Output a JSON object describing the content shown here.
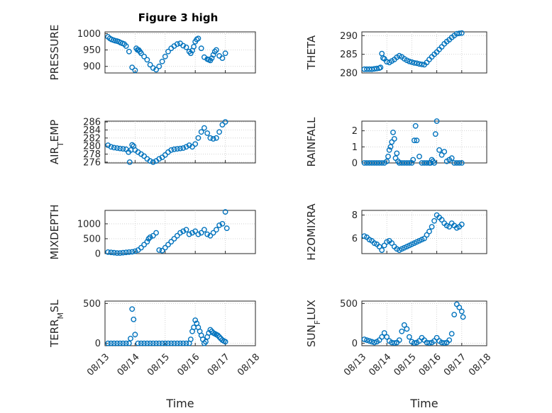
{
  "figure_title": "Figure 3 high",
  "marker_color": "#0072bd",
  "chart_data": [
    {
      "type": "scatter",
      "title": "Figure 3 high",
      "ylabel": "PRESSURE",
      "xlabel": "",
      "xlim": [
        0,
        5
      ],
      "ylim": [
        880,
        1005
      ],
      "yticks": [
        900,
        950,
        1000
      ],
      "xticks": [],
      "x": [
        0.1,
        0.16,
        0.22,
        0.28,
        0.34,
        0.4,
        0.46,
        0.52,
        0.58,
        0.64,
        0.7,
        0.8,
        0.9,
        1.0,
        1.04,
        1.08,
        1.12,
        1.16,
        1.2,
        1.3,
        1.4,
        1.5,
        1.6,
        1.7,
        1.8,
        1.9,
        2.0,
        2.1,
        2.2,
        2.3,
        2.4,
        2.5,
        2.6,
        2.7,
        2.8,
        2.85,
        2.9,
        2.95,
        3.0,
        3.05,
        3.1,
        3.2,
        3.3,
        3.4,
        3.45,
        3.5,
        3.55,
        3.6,
        3.65,
        3.7,
        3.8,
        3.9,
        4.0
      ],
      "y": [
        990,
        985,
        982,
        980,
        978,
        977,
        975,
        972,
        970,
        968,
        962,
        945,
        897,
        888,
        955,
        950,
        950,
        945,
        940,
        930,
        920,
        905,
        895,
        890,
        900,
        915,
        930,
        945,
        955,
        962,
        968,
        970,
        963,
        958,
        945,
        940,
        948,
        960,
        975,
        982,
        985,
        955,
        928,
        922,
        920,
        918,
        925,
        935,
        945,
        950,
        932,
        925,
        940
      ]
    },
    {
      "type": "scatter",
      "ylabel": "THETA",
      "xlabel": "",
      "xlim": [
        0,
        5
      ],
      "ylim": [
        280,
        291
      ],
      "yticks": [
        280,
        285,
        290
      ],
      "xticks": [],
      "x": [
        0.1,
        0.2,
        0.3,
        0.4,
        0.5,
        0.6,
        0.7,
        0.75,
        0.8,
        0.85,
        0.9,
        1.0,
        1.1,
        1.2,
        1.3,
        1.4,
        1.5,
        1.6,
        1.7,
        1.8,
        1.9,
        2.0,
        2.1,
        2.2,
        2.3,
        2.4,
        2.5,
        2.6,
        2.7,
        2.8,
        2.9,
        3.0,
        3.1,
        3.2,
        3.3,
        3.4,
        3.5,
        3.6,
        3.7,
        3.8,
        3.9,
        4.0
      ],
      "y": [
        281.0,
        281.0,
        281.0,
        281.0,
        281.1,
        281.2,
        281.3,
        281.5,
        285.2,
        284.0,
        283.8,
        283.0,
        282.8,
        283.2,
        283.6,
        284.2,
        284.6,
        284.3,
        283.8,
        283.4,
        283.1,
        282.9,
        282.7,
        282.6,
        282.4,
        282.3,
        282.2,
        282.8,
        283.6,
        284.3,
        285.0,
        285.6,
        286.3,
        287.0,
        287.8,
        288.4,
        288.9,
        289.5,
        290.0,
        290.5,
        290.6,
        290.7
      ]
    },
    {
      "type": "scatter",
      "ylabel": "AIR_TEMP",
      "xlabel": "",
      "xlim": [
        0,
        5
      ],
      "ylim": [
        275.8,
        286.2
      ],
      "yticks": [
        276,
        278,
        280,
        282,
        284,
        286
      ],
      "xticks": [],
      "x": [
        0.1,
        0.2,
        0.3,
        0.4,
        0.5,
        0.6,
        0.7,
        0.78,
        0.82,
        0.86,
        0.9,
        0.95,
        1.0,
        1.1,
        1.2,
        1.3,
        1.4,
        1.5,
        1.6,
        1.7,
        1.8,
        1.9,
        2.0,
        2.1,
        2.2,
        2.3,
        2.4,
        2.5,
        2.6,
        2.7,
        2.8,
        2.9,
        3.0,
        3.1,
        3.2,
        3.3,
        3.4,
        3.5,
        3.6,
        3.7,
        3.8,
        3.9,
        4.0
      ],
      "y": [
        280.2,
        279.8,
        279.6,
        279.5,
        279.4,
        279.3,
        279.2,
        278.5,
        276.0,
        279.0,
        280.3,
        280.0,
        279.0,
        278.5,
        278.0,
        277.5,
        276.8,
        276.3,
        276.0,
        276.3,
        276.8,
        277.2,
        277.8,
        278.5,
        279.0,
        279.2,
        279.3,
        279.4,
        279.5,
        279.8,
        280.2,
        279.8,
        280.5,
        282.0,
        283.5,
        284.5,
        283.2,
        282.0,
        281.8,
        282.0,
        283.5,
        285.3,
        286.0
      ]
    },
    {
      "type": "scatter",
      "ylabel": "RAINFALL",
      "xlabel": "",
      "xlim": [
        0,
        5
      ],
      "ylim": [
        0,
        2.6
      ],
      "yticks": [
        0,
        1,
        2
      ],
      "xticks": [],
      "x": [
        0.1,
        0.2,
        0.3,
        0.4,
        0.5,
        0.6,
        0.7,
        0.8,
        0.9,
        1.0,
        1.05,
        1.1,
        1.15,
        1.2,
        1.25,
        1.3,
        1.35,
        1.4,
        1.45,
        1.5,
        1.6,
        1.7,
        1.8,
        1.9,
        2.0,
        2.05,
        2.1,
        2.15,
        2.2,
        2.3,
        2.4,
        2.5,
        2.6,
        2.7,
        2.75,
        2.8,
        2.85,
        2.9,
        2.95,
        3.0,
        3.1,
        3.2,
        3.3,
        3.4,
        3.5,
        3.6,
        3.7,
        3.8,
        3.9,
        4.0
      ],
      "y": [
        0,
        0,
        0,
        0,
        0,
        0,
        0,
        0,
        0,
        0.1,
        0.4,
        0.8,
        1.0,
        1.3,
        1.9,
        1.5,
        0.3,
        0.6,
        0.1,
        0,
        0,
        0,
        0,
        0,
        0,
        0.2,
        1.4,
        2.3,
        1.4,
        0.4,
        0,
        0,
        0,
        0,
        0,
        0.2,
        0.1,
        0,
        1.8,
        2.6,
        0.8,
        0.5,
        0.7,
        0.1,
        0.2,
        0.3,
        0,
        0,
        0,
        0
      ]
    },
    {
      "type": "scatter",
      "ylabel": "MIXDEPTH",
      "xlabel": "",
      "xlim": [
        0,
        5
      ],
      "ylim": [
        0,
        1450
      ],
      "yticks": [
        0,
        500,
        1000
      ],
      "xticks": [],
      "x": [
        0.1,
        0.2,
        0.3,
        0.4,
        0.5,
        0.6,
        0.7,
        0.8,
        0.9,
        1.0,
        1.1,
        1.2,
        1.3,
        1.4,
        1.45,
        1.5,
        1.6,
        1.7,
        1.8,
        1.9,
        2.0,
        2.1,
        2.2,
        2.3,
        2.4,
        2.5,
        2.6,
        2.7,
        2.8,
        2.9,
        3.0,
        3.1,
        3.2,
        3.3,
        3.4,
        3.5,
        3.6,
        3.7,
        3.8,
        3.9,
        4.0,
        4.05
      ],
      "y": [
        50,
        40,
        30,
        20,
        20,
        30,
        40,
        50,
        60,
        80,
        120,
        200,
        300,
        400,
        500,
        550,
        600,
        700,
        120,
        100,
        200,
        300,
        400,
        500,
        600,
        700,
        750,
        800,
        650,
        700,
        750,
        650,
        700,
        800,
        650,
        600,
        700,
        800,
        950,
        1000,
        1400,
        850
      ]
    },
    {
      "type": "scatter",
      "ylabel": "H2OMIXRA",
      "xlabel": "",
      "xlim": [
        0,
        5
      ],
      "ylim": [
        4.7,
        8.4
      ],
      "yticks": [
        6,
        8
      ],
      "xticks": [],
      "x": [
        0.1,
        0.2,
        0.3,
        0.4,
        0.5,
        0.6,
        0.7,
        0.8,
        0.9,
        1.0,
        1.1,
        1.2,
        1.3,
        1.4,
        1.5,
        1.6,
        1.7,
        1.8,
        1.9,
        2.0,
        2.1,
        2.2,
        2.3,
        2.4,
        2.5,
        2.6,
        2.7,
        2.8,
        2.9,
        3.0,
        3.1,
        3.2,
        3.3,
        3.4,
        3.5,
        3.6,
        3.7,
        3.8,
        3.9,
        4.0
      ],
      "y": [
        6.2,
        6.1,
        5.9,
        5.8,
        5.6,
        5.5,
        5.3,
        5.0,
        5.4,
        5.7,
        5.8,
        5.6,
        5.3,
        5.1,
        5.0,
        5.1,
        5.2,
        5.3,
        5.4,
        5.5,
        5.6,
        5.7,
        5.8,
        5.9,
        6.0,
        6.3,
        6.6,
        7.0,
        7.5,
        8.0,
        7.8,
        7.6,
        7.3,
        7.1,
        7.0,
        7.3,
        7.1,
        6.9,
        7.0,
        7.2
      ]
    },
    {
      "type": "scatter",
      "ylabel": "TERR_MSL",
      "xlabel": "Time",
      "xlim": [
        0,
        5
      ],
      "ylim": [
        -30,
        530
      ],
      "yticks": [
        0,
        500
      ],
      "xticks": [
        "08/13",
        "08/14",
        "08/15",
        "08/16",
        "08/17",
        "08/18"
      ],
      "x": [
        0.1,
        0.2,
        0.3,
        0.4,
        0.5,
        0.6,
        0.7,
        0.8,
        0.85,
        0.9,
        0.95,
        1.0,
        1.1,
        1.2,
        1.3,
        1.4,
        1.5,
        1.6,
        1.7,
        1.8,
        1.9,
        2.0,
        2.1,
        2.2,
        2.3,
        2.4,
        2.5,
        2.6,
        2.7,
        2.8,
        2.85,
        2.9,
        2.95,
        3.0,
        3.05,
        3.1,
        3.15,
        3.2,
        3.25,
        3.3,
        3.35,
        3.4,
        3.45,
        3.5,
        3.55,
        3.6,
        3.65,
        3.7,
        3.75,
        3.8,
        3.85,
        3.9,
        3.95,
        4.0
      ],
      "y": [
        0,
        0,
        0,
        0,
        0,
        0,
        0,
        0,
        60,
        430,
        300,
        110,
        0,
        0,
        0,
        0,
        0,
        0,
        0,
        0,
        0,
        0,
        0,
        0,
        0,
        0,
        0,
        0,
        0,
        0,
        50,
        150,
        200,
        290,
        250,
        200,
        150,
        100,
        50,
        0,
        20,
        80,
        130,
        170,
        150,
        130,
        120,
        110,
        100,
        80,
        60,
        40,
        30,
        20
      ]
    },
    {
      "type": "scatter",
      "ylabel": "SUN_FLUX",
      "xlabel": "Time",
      "xlim": [
        0,
        5
      ],
      "ylim": [
        -30,
        530
      ],
      "yticks": [
        0,
        500
      ],
      "xticks": [
        "08/13",
        "08/14",
        "08/15",
        "08/16",
        "08/17",
        "08/18"
      ],
      "x": [
        0.1,
        0.2,
        0.3,
        0.4,
        0.5,
        0.6,
        0.7,
        0.8,
        0.9,
        1.0,
        1.1,
        1.2,
        1.3,
        1.4,
        1.5,
        1.6,
        1.7,
        1.8,
        1.9,
        2.0,
        2.1,
        2.2,
        2.3,
        2.4,
        2.5,
        2.6,
        2.7,
        2.8,
        2.9,
        3.0,
        3.1,
        3.2,
        3.3,
        3.4,
        3.5,
        3.6,
        3.7,
        3.8,
        3.9,
        4.0,
        4.05
      ],
      "y": [
        50,
        40,
        30,
        20,
        10,
        20,
        40,
        80,
        130,
        80,
        30,
        10,
        5,
        10,
        40,
        150,
        230,
        180,
        80,
        20,
        5,
        10,
        30,
        70,
        40,
        10,
        5,
        10,
        30,
        70,
        30,
        10,
        5,
        10,
        40,
        120,
        360,
        490,
        450,
        400,
        330
      ]
    }
  ]
}
